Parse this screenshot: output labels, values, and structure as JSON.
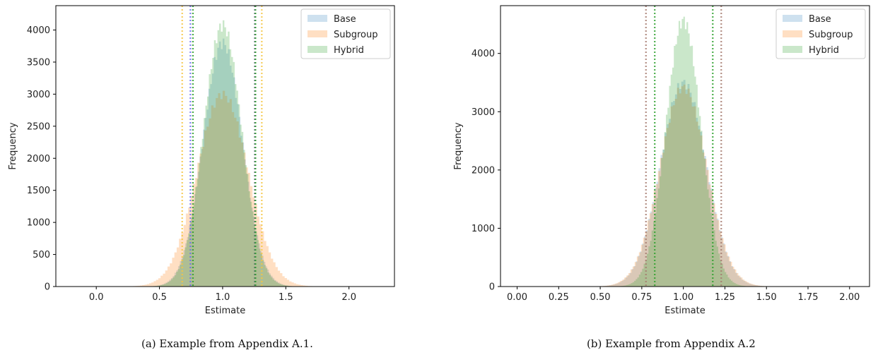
{
  "captions": {
    "a": "(a) Example from Appendix A.1.",
    "b": "(b) Example from Appendix A.2"
  },
  "colors": {
    "Base": "#1f77b4",
    "Subgroup": "#ff7f0e",
    "Hybrid": "#2ca02c",
    "axis": "#000000"
  },
  "chart_data": [
    {
      "type": "area",
      "subtype": "histogram",
      "title": "",
      "xlabel": "Estimate",
      "ylabel": "Frequency",
      "xlim": [
        -0.32,
        2.36
      ],
      "ylim": [
        0,
        4380
      ],
      "xticks": [
        "0.0",
        "0.5",
        "1.0",
        "1.5",
        "2.0"
      ],
      "yticks": [
        "0",
        "500",
        "1000",
        "1500",
        "2000",
        "2500",
        "3000",
        "3500",
        "4000"
      ],
      "legend": {
        "position": "upper right",
        "entries": [
          "Base",
          "Subgroup",
          "Hybrid"
        ]
      },
      "series": [
        {
          "name": "Base",
          "distribution": "normal",
          "mean": 1.0,
          "sd": 0.155,
          "peak": 3800
        },
        {
          "name": "Subgroup",
          "distribution": "normal",
          "mean": 1.0,
          "sd": 0.2,
          "peak": 3000
        },
        {
          "name": "Hybrid",
          "distribution": "normal",
          "mean": 1.0,
          "sd": 0.15,
          "peak": 4080
        }
      ],
      "reference_lines": [
        {
          "series": "Subgroup",
          "x": 0.68,
          "color": "#f5c542"
        },
        {
          "series": "Base",
          "x": 0.745,
          "color": "#6a6cf0"
        },
        {
          "series": "Hybrid",
          "x": 0.765,
          "color": "#2ca02c"
        },
        {
          "series": "Base",
          "x": 1.255,
          "color": "#555577"
        },
        {
          "series": "Hybrid",
          "x": 1.26,
          "color": "#2ca02c"
        },
        {
          "series": "Subgroup",
          "x": 1.31,
          "color": "#f5c542"
        }
      ]
    },
    {
      "type": "area",
      "subtype": "histogram",
      "title": "",
      "xlabel": "Estimate",
      "ylabel": "Frequency",
      "xlim": [
        -0.1,
        2.12
      ],
      "ylim": [
        0,
        4820
      ],
      "xticks": [
        "0.00",
        "0.25",
        "0.50",
        "0.75",
        "1.00",
        "1.25",
        "1.50",
        "1.75",
        "2.00"
      ],
      "yticks": [
        "0",
        "1000",
        "2000",
        "3000",
        "4000"
      ],
      "legend": {
        "position": "upper right",
        "entries": [
          "Base",
          "Subgroup",
          "Hybrid"
        ]
      },
      "series": [
        {
          "name": "Base",
          "distribution": "normal",
          "mean": 1.0,
          "sd": 0.137,
          "peak": 3500
        },
        {
          "name": "Subgroup",
          "distribution": "normal",
          "mean": 1.0,
          "sd": 0.14,
          "peak": 3420
        },
        {
          "name": "Hybrid",
          "distribution": "normal",
          "mean": 1.0,
          "sd": 0.105,
          "peak": 4570
        }
      ],
      "reference_lines": [
        {
          "series": "Base",
          "x": 0.775,
          "color": "#a57a6e"
        },
        {
          "series": "Hybrid",
          "x": 0.828,
          "color": "#2ca02c"
        },
        {
          "series": "Hybrid",
          "x": 1.177,
          "color": "#2ca02c"
        },
        {
          "series": "Base",
          "x": 1.228,
          "color": "#a57a6e"
        }
      ]
    }
  ]
}
